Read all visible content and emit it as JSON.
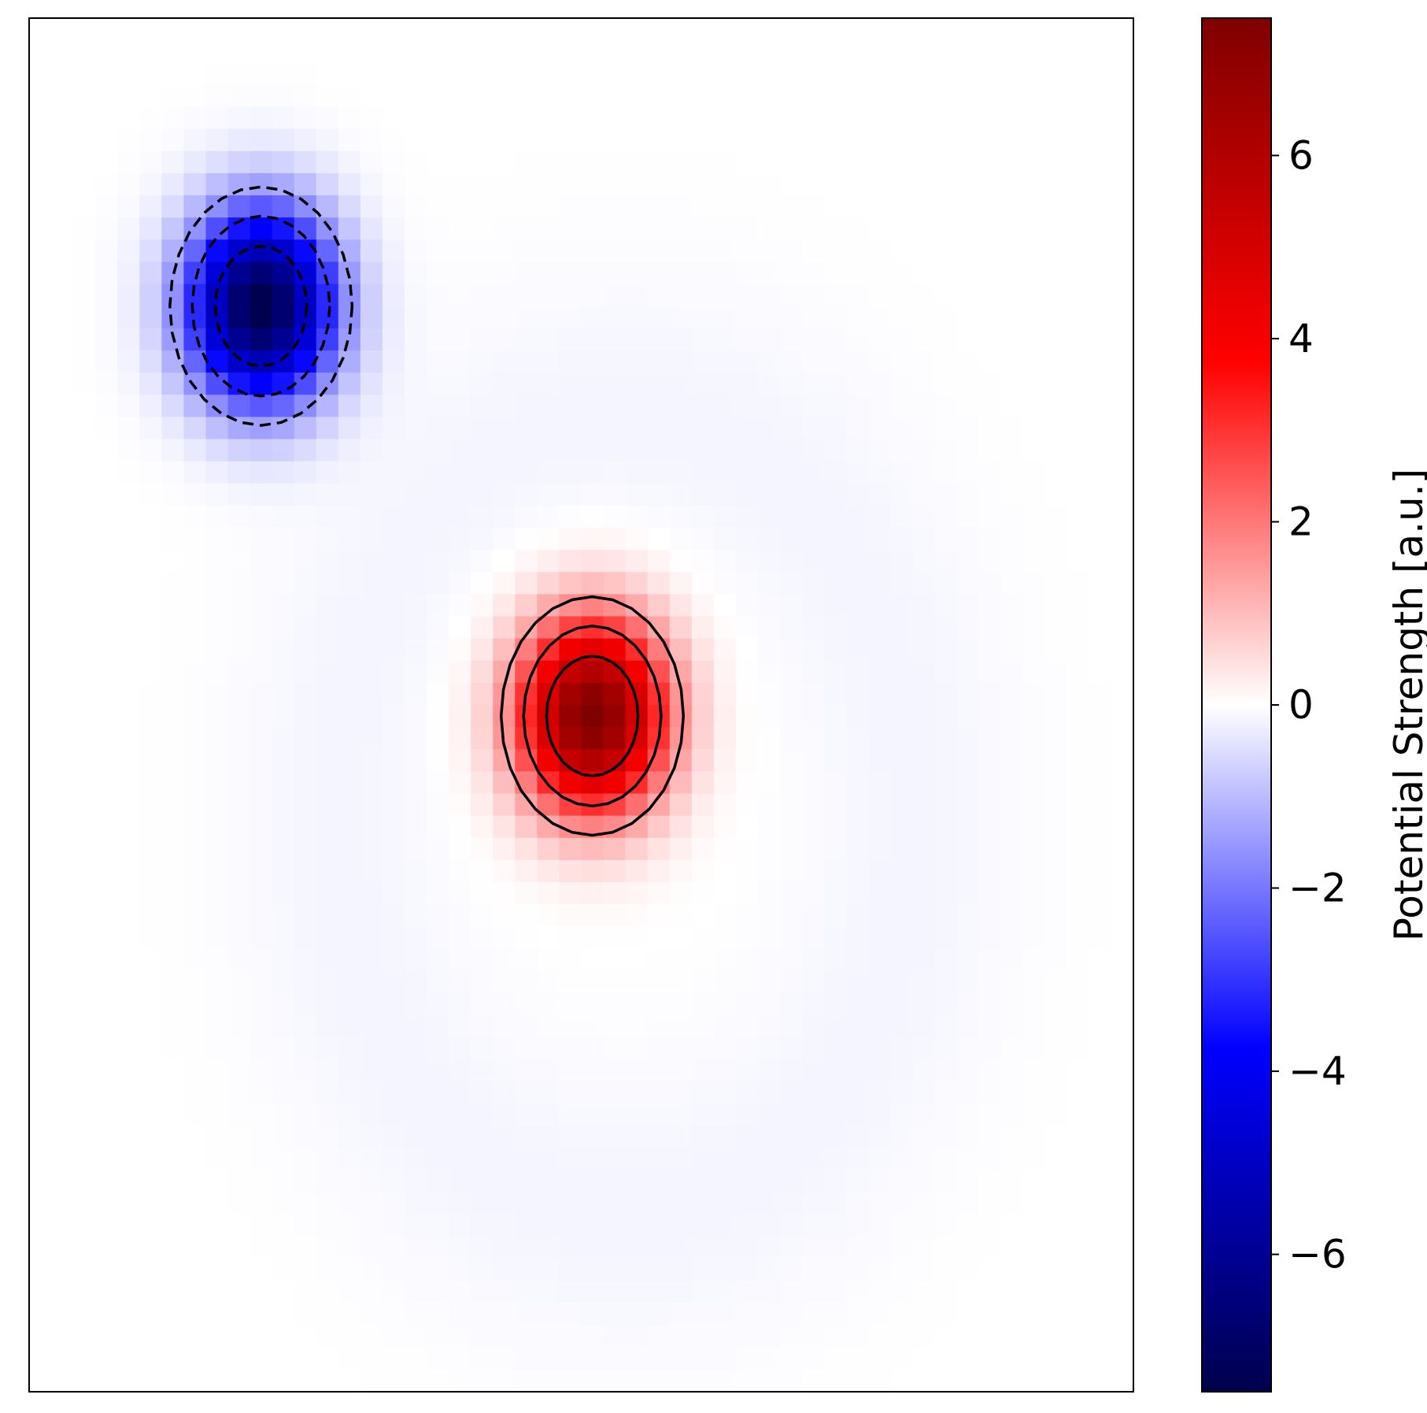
{
  "chart_data": {
    "type": "heatmap",
    "title": "",
    "xlabel": "",
    "ylabel": "",
    "x_ticks_visible": false,
    "y_ticks_visible": false,
    "grid": false,
    "colormap": "seismic",
    "colormap_stops": [
      "#00004c",
      "#0000ff",
      "#ffffff",
      "#ff0000",
      "#7f0000"
    ],
    "value_range": [
      -7.5,
      7.5
    ],
    "grid_size": {
      "cols": 50,
      "rows": 62
    },
    "sources": [
      {
        "name": "negative-well",
        "col": 10.5,
        "row": 13.0,
        "peak": -7.5,
        "sigma_col": 2.3,
        "sigma_row": 3.0
      },
      {
        "name": "positive-well",
        "col": 25.5,
        "row": 31.5,
        "peak": 7.5,
        "sigma_col": 2.3,
        "sigma_row": 3.0
      },
      {
        "name": "diffuse-ring",
        "center_col": 27,
        "center_row": 36,
        "radius_col": 13,
        "radius_row": 18,
        "amplitude": -0.15,
        "width": 5
      }
    ],
    "contours": {
      "negative_levels": [
        -5,
        -3,
        -1.5
      ],
      "positive_levels": [
        1.5,
        3,
        5
      ],
      "negative_style": "dashed",
      "positive_style": "solid",
      "color": "#000000"
    },
    "colorbar": {
      "label": "Potential Strength [a.u.]",
      "ticks": [
        -6,
        -4,
        -2,
        0,
        2,
        4,
        6
      ],
      "tick_labels": [
        "−6",
        "−4",
        "−2",
        "0",
        "2",
        "4",
        "6"
      ],
      "min": -7.5,
      "max": 7.5
    }
  }
}
